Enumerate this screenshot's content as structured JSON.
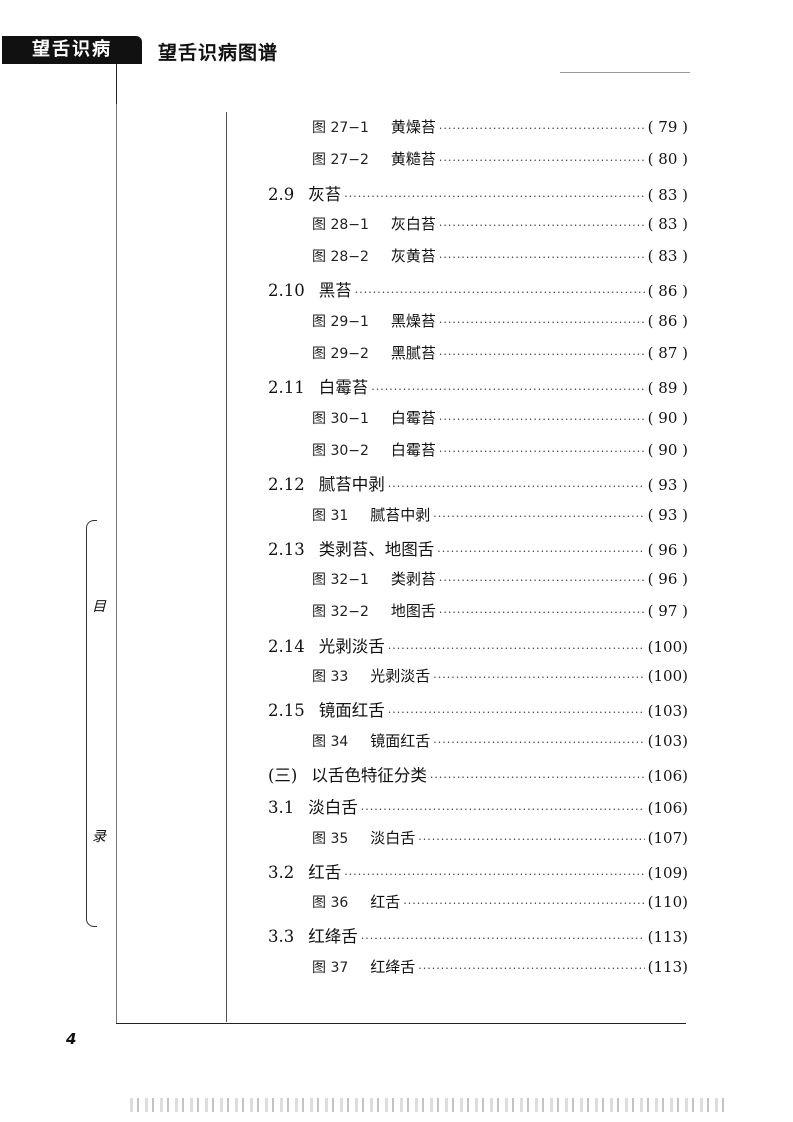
{
  "header": {
    "logo_text": "望舌识病",
    "title": "望舌识病图谱"
  },
  "side_labels": [
    "目",
    "录"
  ],
  "page_number": "4",
  "toc": [
    {
      "type": "fig",
      "num": "图 27−1",
      "text": "黄燥苔",
      "page": "( 79 )"
    },
    {
      "type": "fig",
      "num": "图 27−2",
      "text": "黄糙苔",
      "page": "( 80 )"
    },
    {
      "type": "sec",
      "num": "2.9",
      "text": "灰苔",
      "page": "( 83 )"
    },
    {
      "type": "fig",
      "num": "图 28−1",
      "text": "灰白苔",
      "page": "( 83 )"
    },
    {
      "type": "fig",
      "num": "图 28−2",
      "text": "灰黄苔",
      "page": "( 83 )"
    },
    {
      "type": "sec",
      "num": "2.10",
      "text": "黑苔",
      "page": "( 86 )"
    },
    {
      "type": "fig",
      "num": "图 29−1",
      "text": "黑燥苔",
      "page": "( 86 )"
    },
    {
      "type": "fig",
      "num": "图 29−2",
      "text": "黑腻苔",
      "page": "( 87 )"
    },
    {
      "type": "sec",
      "num": "2.11",
      "text": "白霉苔",
      "page": "( 89 )"
    },
    {
      "type": "fig",
      "num": "图 30−1",
      "text": "白霉苔",
      "page": "( 90 )"
    },
    {
      "type": "fig",
      "num": "图 30−2",
      "text": "白霉苔",
      "page": "( 90 )"
    },
    {
      "type": "sec",
      "num": "2.12",
      "text": "腻苔中剥",
      "page": "( 93 )"
    },
    {
      "type": "fig",
      "num": "图 31",
      "text": "腻苔中剥",
      "page": "( 93 )"
    },
    {
      "type": "sec",
      "num": "2.13",
      "text": "类剥苔、地图舌",
      "page": "( 96 )"
    },
    {
      "type": "fig",
      "num": "图 32−1",
      "text": "类剥苔",
      "page": "( 96 )"
    },
    {
      "type": "fig",
      "num": "图 32−2",
      "text": "地图舌",
      "page": "( 97 )"
    },
    {
      "type": "sec",
      "num": "2.14",
      "text": "光剥淡舌",
      "page": "(100)"
    },
    {
      "type": "fig",
      "num": "图 33",
      "text": "光剥淡舌",
      "page": "(100)"
    },
    {
      "type": "sec",
      "num": "2.15",
      "text": "镜面红舌",
      "page": "(103)"
    },
    {
      "type": "fig",
      "num": "图 34",
      "text": "镜面红舌",
      "page": "(103)"
    },
    {
      "type": "sec",
      "num": "(三)",
      "text": "以舌色特征分类",
      "page": "(106)"
    },
    {
      "type": "sec",
      "num": "3.1",
      "text": "淡白舌",
      "page": "(106)"
    },
    {
      "type": "fig",
      "num": "图 35",
      "text": "淡白舌",
      "page": "(107)"
    },
    {
      "type": "sec",
      "num": "3.2",
      "text": "红舌",
      "page": "(109)"
    },
    {
      "type": "fig",
      "num": "图 36",
      "text": "红舌",
      "page": "(110)"
    },
    {
      "type": "sec",
      "num": "3.3",
      "text": "红绛舌",
      "page": "(113)"
    },
    {
      "type": "fig",
      "num": "图 37",
      "text": "红绛舌",
      "page": "(113)"
    }
  ]
}
